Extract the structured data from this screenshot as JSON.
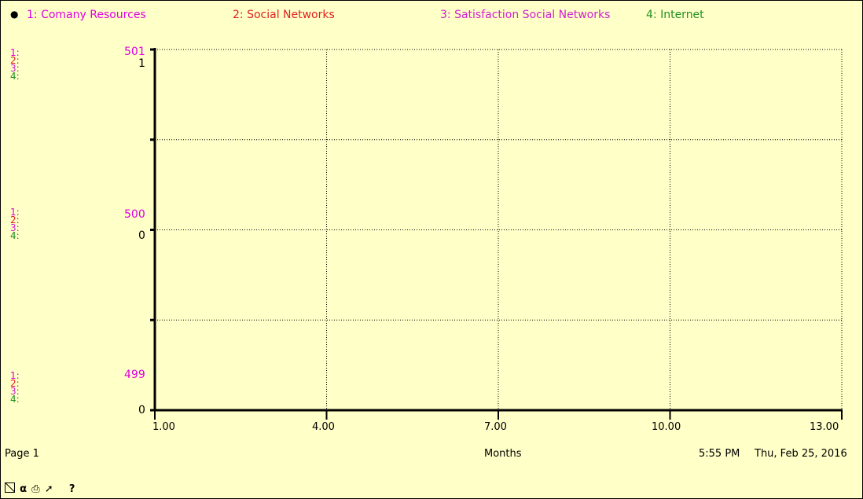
{
  "colors": {
    "background": "#ffffc8",
    "series1": "#e000e0",
    "series2": "#e02020",
    "series3": "#d020d0",
    "series4": "#209020"
  },
  "legend": {
    "pin_icon": "pushpin-icon",
    "items": [
      {
        "label": "1: Comany Resources",
        "color": "#e000e0"
      },
      {
        "label": "2: Social Networks",
        "color": "#e02020"
      },
      {
        "label": "3: Satisfaction Social Networks",
        "color": "#d020d0"
      },
      {
        "label": "4: Internet",
        "color": "#209020"
      }
    ]
  },
  "axis_markers": {
    "m1": "1:",
    "m2": "2:",
    "m3": "3:",
    "m4": "4:"
  },
  "footer": {
    "page": "Page 1",
    "time": "5:55 PM",
    "date": "Thu, Feb 25, 2016"
  },
  "toolbar": {
    "icons": [
      "scale-icon",
      "lock-icon",
      "print-icon",
      "wand-icon"
    ],
    "help": "?"
  },
  "chart_data": {
    "type": "line",
    "xlabel": "Months",
    "x_ticks": [
      "1.00",
      "4.00",
      "7.00",
      "10.00",
      "13.00"
    ],
    "xlim": [
      1,
      13
    ],
    "y_axes": [
      {
        "series": "1: Comany Resources",
        "ticks": [
          "501",
          "500",
          "499"
        ],
        "ylim": [
          499,
          501
        ]
      },
      {
        "series": "2: Social Networks",
        "ticks": [
          "1",
          "0",
          "0"
        ],
        "ylim": [
          0,
          1
        ]
      }
    ],
    "series": [],
    "grid": true
  }
}
